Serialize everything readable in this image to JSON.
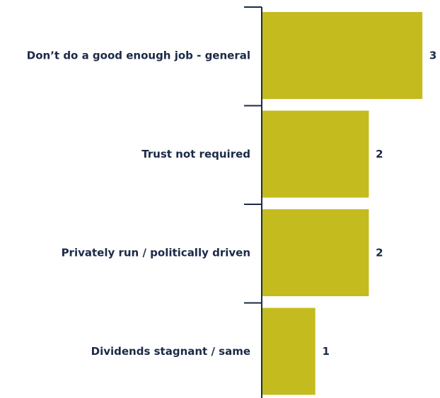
{
  "chart_data": {
    "type": "bar",
    "orientation": "horizontal",
    "title": "",
    "xlabel": "",
    "ylabel": "",
    "categories": [
      "Don’t do a good enough job - general",
      "Trust not required",
      "Privately run / politically driven",
      "Dividends stagnant / same"
    ],
    "values": [
      3,
      2,
      2,
      1
    ],
    "value_labels": [
      "3",
      "2",
      "2",
      "1"
    ],
    "xlim": [
      0,
      3
    ],
    "grid": false,
    "legend": "none",
    "colors": {
      "bar": "#c4bb1f",
      "axis": "#1b2a47",
      "text": "#1b2a47"
    }
  }
}
